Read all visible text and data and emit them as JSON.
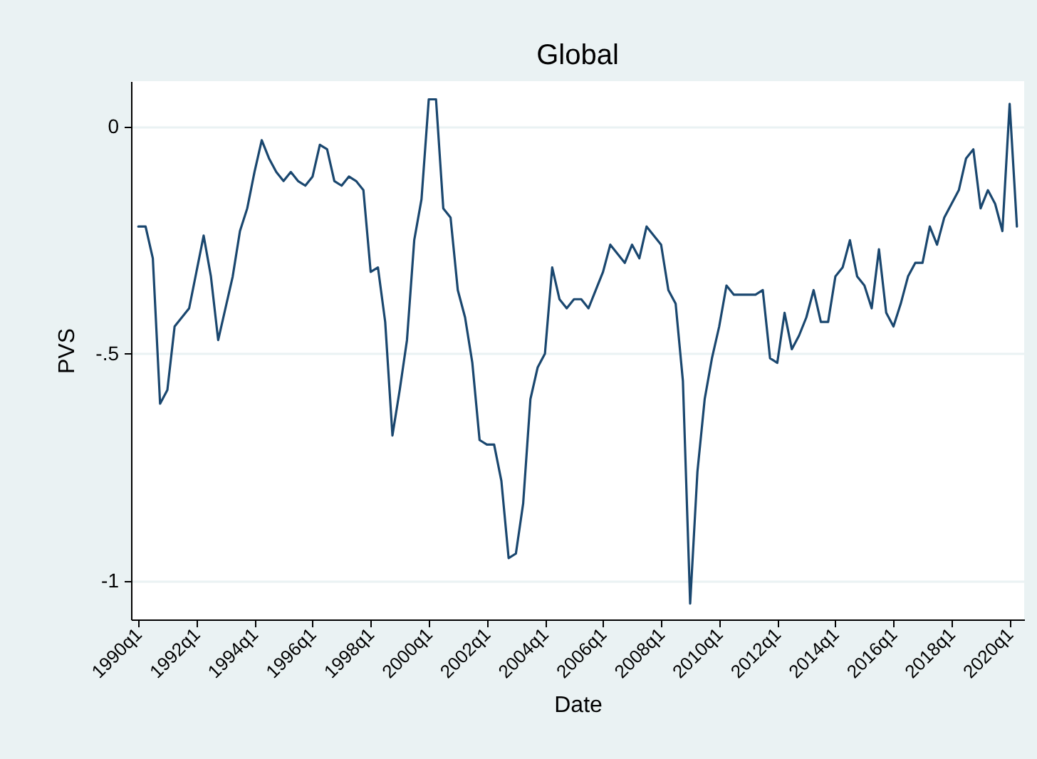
{
  "chart_data": {
    "type": "line",
    "title": "Global",
    "xlabel": "Date",
    "ylabel": "PVS",
    "categories": [
      "1990q1",
      null,
      null,
      null,
      null,
      null,
      null,
      null,
      "1992q1",
      null,
      null,
      null,
      null,
      null,
      null,
      null,
      "1994q1",
      null,
      null,
      null,
      null,
      null,
      null,
      null,
      "1996q1",
      null,
      null,
      null,
      null,
      null,
      null,
      null,
      "1998q1",
      null,
      null,
      null,
      null,
      null,
      null,
      null,
      "2000q1",
      null,
      null,
      null,
      null,
      null,
      null,
      null,
      "2002q1",
      null,
      null,
      null,
      null,
      null,
      null,
      null,
      "2004q1",
      null,
      null,
      null,
      null,
      null,
      null,
      null,
      "2006q1",
      null,
      null,
      null,
      null,
      null,
      null,
      null,
      "2008q1",
      null,
      null,
      null,
      null,
      null,
      null,
      null,
      "2010q1",
      null,
      null,
      null,
      null,
      null,
      null,
      null,
      "2012q1",
      null,
      null,
      null,
      null,
      null,
      null,
      null,
      "2014q1",
      null,
      null,
      null,
      null,
      null,
      null,
      null,
      "2016q1",
      null,
      null,
      null,
      null,
      null,
      null,
      null,
      "2018q1",
      null,
      null,
      null,
      null,
      null,
      null,
      null,
      "2020q1",
      null
    ],
    "series": [
      {
        "color": "#1a476f",
        "values": [
          -0.22,
          -0.22,
          -0.29,
          -0.61,
          -0.58,
          -0.44,
          -0.42,
          -0.4,
          -0.32,
          -0.24,
          -0.33,
          -0.47,
          -0.4,
          -0.33,
          -0.23,
          -0.18,
          -0.1,
          -0.03,
          -0.07,
          -0.1,
          -0.12,
          -0.1,
          -0.12,
          -0.13,
          -0.11,
          -0.04,
          -0.05,
          -0.12,
          -0.13,
          -0.11,
          -0.12,
          -0.14,
          -0.32,
          -0.31,
          -0.43,
          -0.68,
          -0.58,
          -0.47,
          -0.25,
          -0.16,
          0.06,
          0.06,
          -0.18,
          -0.2,
          -0.36,
          -0.42,
          -0.52,
          -0.69,
          -0.7,
          -0.7,
          -0.78,
          -0.95,
          -0.94,
          -0.83,
          -0.6,
          -0.53,
          -0.5,
          -0.31,
          -0.38,
          -0.4,
          -0.38,
          -0.38,
          -0.4,
          -0.36,
          -0.32,
          -0.26,
          -0.28,
          -0.3,
          -0.26,
          -0.29,
          -0.22,
          -0.24,
          -0.26,
          -0.36,
          -0.39,
          -0.56,
          -1.05,
          -0.76,
          -0.6,
          -0.51,
          -0.44,
          -0.35,
          -0.37,
          -0.37,
          -0.37,
          -0.37,
          -0.36,
          -0.51,
          -0.52,
          -0.41,
          -0.49,
          -0.46,
          -0.42,
          -0.36,
          -0.43,
          -0.43,
          -0.33,
          -0.31,
          -0.25,
          -0.33,
          -0.35,
          -0.4,
          -0.27,
          -0.41,
          -0.44,
          -0.39,
          -0.33,
          -0.3,
          -0.3,
          -0.22,
          -0.26,
          -0.2,
          -0.17,
          -0.14,
          -0.07,
          -0.05,
          -0.18,
          -0.14,
          -0.17,
          -0.23,
          0.05,
          -0.22
        ]
      }
    ],
    "ylim": [
      -1.085,
      0.1
    ],
    "yticks": [
      {
        "value": -1,
        "label": "-1"
      },
      {
        "value": -0.5,
        "label": "-.5"
      },
      0
    ],
    "grid": "y"
  }
}
